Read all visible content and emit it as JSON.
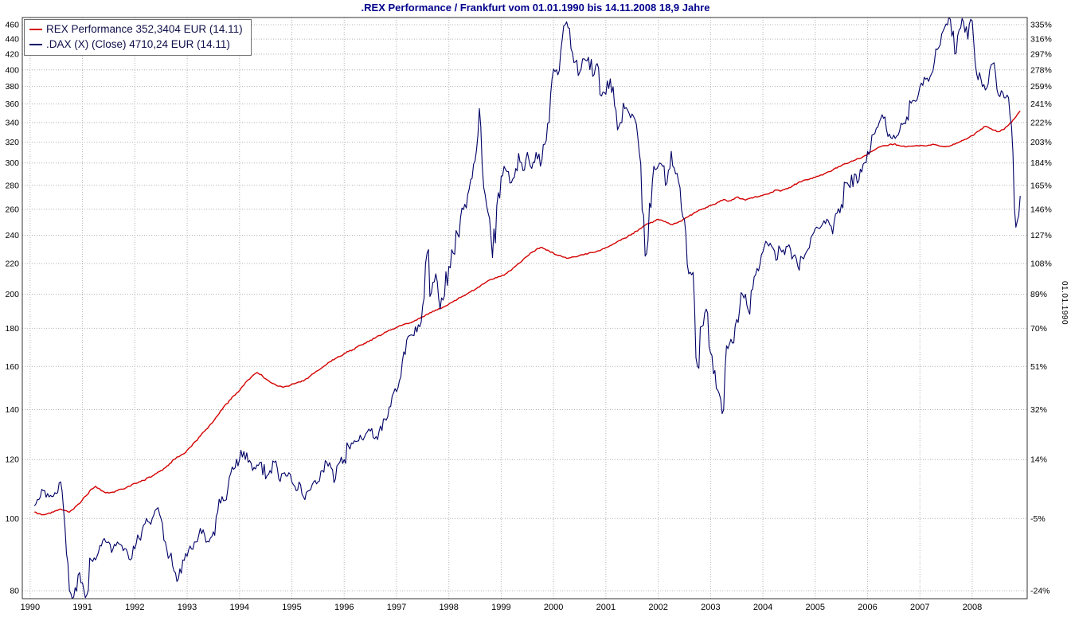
{
  "title": ".REX Performance / Frankfurt vom 01.01.1990 bis 14.11.2008 18,9 Jahre",
  "right_axis_caption": "01.01.1990",
  "legend": {
    "items": [
      {
        "label": "REX Performance 352,3404 EUR (14.11)",
        "color": "#d40000"
      },
      {
        "label": ".DAX (X) (Close) 4710,24 EUR (14.11)",
        "color": "#000066"
      }
    ]
  },
  "chart_data": {
    "type": "line",
    "title": ".REX Performance / Frankfurt vom 01.01.1990 bis 14.11.2008 18,9 Jahre",
    "x_axis": {
      "start": "01.01.1990",
      "end": "14.11.2008",
      "tick_years": [
        1990,
        1991,
        1992,
        1993,
        1994,
        1995,
        1996,
        1997,
        1998,
        1999,
        2000,
        2001,
        2002,
        2003,
        2004,
        2005,
        2006,
        2007,
        2008
      ]
    },
    "y_axis_left": {
      "scale": "log",
      "min": 80,
      "max": 460,
      "ticks": [
        460,
        440,
        420,
        400,
        380,
        360,
        340,
        320,
        300,
        280,
        260,
        240,
        220,
        200,
        180,
        160,
        140,
        120,
        100,
        80
      ]
    },
    "y_axis_right": {
      "unit": "percent since 01.01.1990",
      "ticks": [
        "335%",
        "316%",
        "297%",
        "278%",
        "259%",
        "241%",
        "222%",
        "203%",
        "184%",
        "165%",
        "146%",
        "127%",
        "108%",
        "89%",
        "70%",
        "51%",
        "32%",
        "14%",
        "-5%",
        "-24%"
      ]
    },
    "grid": true,
    "legend_position": "top-left",
    "series": [
      {
        "name": "REX Performance",
        "color": "#d40000",
        "last_value_label": "352,3404 EUR (14.11)",
        "x_start_year": 1990,
        "points_per_month": 1,
        "values": [
          102,
          101.5,
          101.2,
          101.5,
          102,
          102.5,
          103,
          102.5,
          102,
          103,
          104.5,
          106,
          107.5,
          109.5,
          110.5,
          109.5,
          108.5,
          108.2,
          108.5,
          109,
          109.5,
          110,
          110.5,
          111.5,
          112,
          112.5,
          113.5,
          114,
          115,
          116,
          117,
          118.5,
          120,
          121,
          122,
          123.5,
          125,
          127,
          129,
          131,
          133,
          135,
          137.5,
          140,
          142.5,
          144.5,
          146.5,
          148.5,
          151,
          153.5,
          155.5,
          157,
          156,
          154,
          152.5,
          151.5,
          150.5,
          150,
          150.5,
          151.5,
          152,
          152.5,
          153.5,
          155,
          156.5,
          158,
          159.5,
          161,
          162.5,
          164,
          165,
          166.5,
          167.5,
          168.5,
          170,
          171,
          172,
          173.5,
          174.5,
          176,
          177,
          178.5,
          179.5,
          180.5,
          181.5,
          182.5,
          183,
          184,
          185.5,
          186.5,
          188,
          189,
          190.5,
          191.5,
          192.5,
          194,
          195.5,
          197,
          198.5,
          200,
          201.5,
          203,
          204.5,
          206.5,
          208.5,
          209.5,
          210.5,
          211.5,
          213,
          215,
          217.5,
          220,
          222.5,
          225,
          227.5,
          229.5,
          231,
          230,
          228.5,
          227,
          225.5,
          224.5,
          223.5,
          224,
          224.5,
          225.5,
          226,
          227,
          227.5,
          228.5,
          229.5,
          231,
          232.5,
          234,
          236,
          237.5,
          239,
          241,
          243,
          245,
          247.5,
          249,
          250.5,
          252,
          251,
          249.5,
          248,
          249,
          250.5,
          252.5,
          254.5,
          256.5,
          258.5,
          260,
          261.5,
          263,
          264,
          266,
          268,
          266.5,
          268,
          270,
          268.5,
          267.5,
          269,
          270,
          270.5,
          271.5,
          272.5,
          274,
          276,
          275,
          276.5,
          278,
          280,
          282,
          283.5,
          285,
          286,
          287,
          288.5,
          290,
          292,
          293.5,
          295.5,
          297.5,
          299.5,
          301,
          302.5,
          304,
          306,
          308,
          311,
          313.5,
          315.5,
          316.5,
          317.5,
          318,
          317,
          316,
          315.5,
          316,
          316.5,
          316.5,
          316.5,
          317,
          318,
          317,
          316,
          315.5,
          316.5,
          318,
          320,
          322,
          324,
          326.5,
          330,
          333,
          336,
          334,
          332,
          330.5,
          332.5,
          336,
          340,
          346,
          352.34
        ]
      },
      {
        "name": ".DAX (X) (Close)",
        "color": "#000066",
        "last_value_label": "4710,24 EUR (14.11)",
        "x_start_year": 1990,
        "points_per_month": 1,
        "values": [
          104,
          106,
          109,
          108,
          107,
          108,
          112,
          97,
          80,
          78.5,
          84,
          82,
          79,
          88,
          88,
          92,
          94,
          93,
          91,
          93,
          92,
          91,
          88,
          91,
          94,
          98,
          99,
          100,
          103,
          100,
          93,
          89,
          85,
          83,
          88,
          89,
          91,
          93,
          97,
          95,
          93,
          96,
          102,
          107,
          106,
          115,
          117,
          120,
          123,
          119,
          116,
          118,
          119,
          113,
          116,
          119,
          113,
          115,
          114,
          112,
          109,
          111,
          106,
          109,
          112,
          112,
          116,
          119,
          117,
          113,
          119,
          120,
          125,
          126,
          127,
          128,
          130,
          131,
          128,
          131,
          136,
          137,
          146,
          148,
          155,
          166,
          176,
          176,
          182,
          193,
          227,
          201,
          213,
          191,
          199,
          218,
          227,
          241,
          261,
          261,
          285,
          302,
          355,
          278,
          257,
          224,
          263,
          288,
          294,
          282,
          287,
          309,
          293,
          310,
          295,
          310,
          297,
          318,
          340,
          401,
          394,
          440,
          464,
          427,
          410,
          397,
          414,
          416,
          392,
          408,
          369,
          371,
          389,
          358,
          336,
          361,
          353,
          349,
          338,
          299,
          225,
          265,
          297,
          297,
          297,
          282,
          311,
          290,
          278,
          252,
          213,
          214,
          160,
          181,
          191,
          167,
          158,
          147,
          140,
          169,
          172,
          185,
          201,
          200,
          188,
          211,
          215,
          228,
          234,
          232,
          222,
          230,
          226,
          233,
          225,
          218,
          224,
          228,
          238,
          245,
          245,
          251,
          251,
          241,
          257,
          264,
          282,
          278,
          290,
          284,
          299,
          311,
          327,
          334,
          344,
          346,
          328,
          327,
          327,
          338,
          346,
          361,
          363,
          380,
          391,
          386,
          399,
          426,
          447,
          461,
          467,
          420,
          453,
          464,
          440,
          465,
          395,
          389,
          376,
          400,
          409,
          370,
          373,
          370,
          336,
          246,
          271
        ]
      }
    ]
  }
}
